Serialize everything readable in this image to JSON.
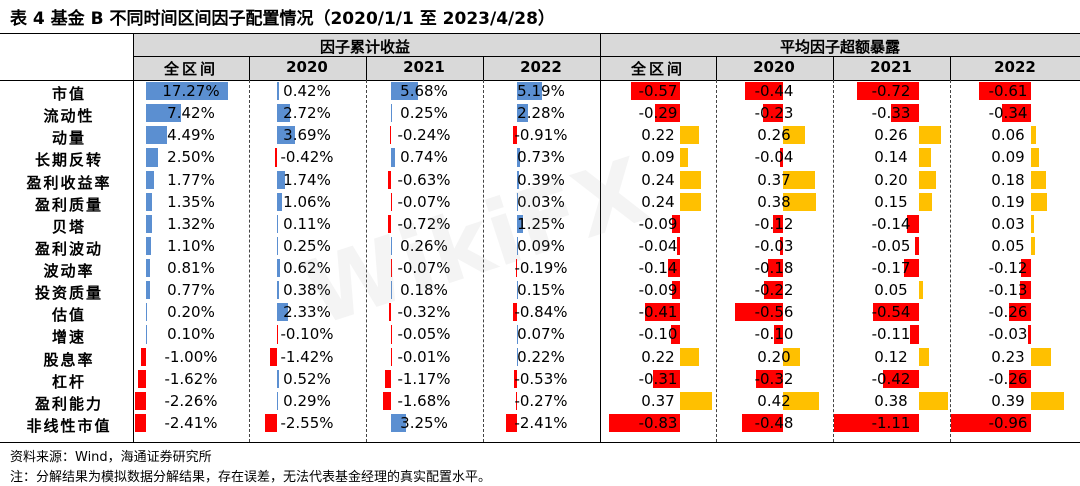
{
  "title": "表 4  基金 B 不同时间区间因子配置情况（2020/1/1 至 2023/4/28）",
  "group_headers": [
    "因子累计收益",
    "平均因子超额暴露"
  ],
  "period_headers": [
    "全区间",
    "2020",
    "2021",
    "2022"
  ],
  "rows": [
    {
      "factor": "市值",
      "ret": [
        "17.27%",
        "0.42%",
        "5.68%",
        "5.19%"
      ],
      "exp": [
        "-0.57",
        "-0.44",
        "-0.72",
        "-0.61"
      ]
    },
    {
      "factor": "流动性",
      "ret": [
        "7.42%",
        "2.72%",
        "0.25%",
        "2.28%"
      ],
      "exp": [
        "-0.29",
        "-0.23",
        "-0.33",
        "-0.34"
      ]
    },
    {
      "factor": "动量",
      "ret": [
        "4.49%",
        "3.69%",
        "-0.24%",
        "-0.91%"
      ],
      "exp": [
        "0.22",
        "0.26",
        "0.26",
        "0.06"
      ]
    },
    {
      "factor": "长期反转",
      "ret": [
        "2.50%",
        "-0.42%",
        "0.74%",
        "0.73%"
      ],
      "exp": [
        "0.09",
        "-0.04",
        "0.14",
        "0.09"
      ]
    },
    {
      "factor": "盈利收益率",
      "ret": [
        "1.77%",
        "1.74%",
        "-0.63%",
        "0.39%"
      ],
      "exp": [
        "0.24",
        "0.37",
        "0.20",
        "0.18"
      ]
    },
    {
      "factor": "盈利质量",
      "ret": [
        "1.35%",
        "1.06%",
        "-0.07%",
        "0.03%"
      ],
      "exp": [
        "0.24",
        "0.38",
        "0.15",
        "0.19"
      ]
    },
    {
      "factor": "贝塔",
      "ret": [
        "1.32%",
        "0.11%",
        "-0.72%",
        "1.25%"
      ],
      "exp": [
        "-0.09",
        "-0.12",
        "-0.14",
        "0.03"
      ]
    },
    {
      "factor": "盈利波动",
      "ret": [
        "1.10%",
        "0.25%",
        "0.26%",
        "0.09%"
      ],
      "exp": [
        "-0.04",
        "-0.03",
        "-0.05",
        "0.05"
      ]
    },
    {
      "factor": "波动率",
      "ret": [
        "0.81%",
        "0.62%",
        "-0.07%",
        "-0.19%"
      ],
      "exp": [
        "-0.14",
        "-0.18",
        "-0.17",
        "-0.12"
      ]
    },
    {
      "factor": "投资质量",
      "ret": [
        "0.77%",
        "0.38%",
        "0.18%",
        "0.15%"
      ],
      "exp": [
        "-0.09",
        "-0.22",
        "0.05",
        "-0.13"
      ]
    },
    {
      "factor": "估值",
      "ret": [
        "0.20%",
        "2.33%",
        "-0.32%",
        "-0.84%"
      ],
      "exp": [
        "-0.41",
        "-0.56",
        "-0.54",
        "-0.26"
      ]
    },
    {
      "factor": "增速",
      "ret": [
        "0.10%",
        "-0.10%",
        "-0.05%",
        "0.07%"
      ],
      "exp": [
        "-0.10",
        "-0.10",
        "-0.11",
        "-0.03"
      ]
    },
    {
      "factor": "股息率",
      "ret": [
        "-1.00%",
        "-1.42%",
        "-0.01%",
        "0.22%"
      ],
      "exp": [
        "0.22",
        "0.20",
        "0.12",
        "0.23"
      ]
    },
    {
      "factor": "杠杆",
      "ret": [
        "-1.62%",
        "0.52%",
        "-1.17%",
        "-0.53%"
      ],
      "exp": [
        "-0.31",
        "-0.32",
        "-0.42",
        "-0.26"
      ]
    },
    {
      "factor": "盈利能力",
      "ret": [
        "-2.26%",
        "0.29%",
        "-1.68%",
        "-0.27%"
      ],
      "exp": [
        "0.37",
        "0.42",
        "0.38",
        "0.39"
      ]
    },
    {
      "factor": "非线性市值",
      "ret": [
        "-2.41%",
        "-2.55%",
        "3.25%",
        "-2.41%"
      ],
      "exp": [
        "-0.83",
        "-0.48",
        "-1.11",
        "-0.96"
      ]
    }
  ],
  "source": "资料来源：Wind，海通证券研究所",
  "note": "注：分解结果为模拟数据分解结果，存在误差，无法代表基金经理的真实配置水平。",
  "watermark": "WikiFX",
  "colors": {
    "positive_return": "#5b8fd1",
    "negative": "#ff0000",
    "positive_exposure": "#ffc000",
    "header_bg": "#d9d9d9"
  }
}
